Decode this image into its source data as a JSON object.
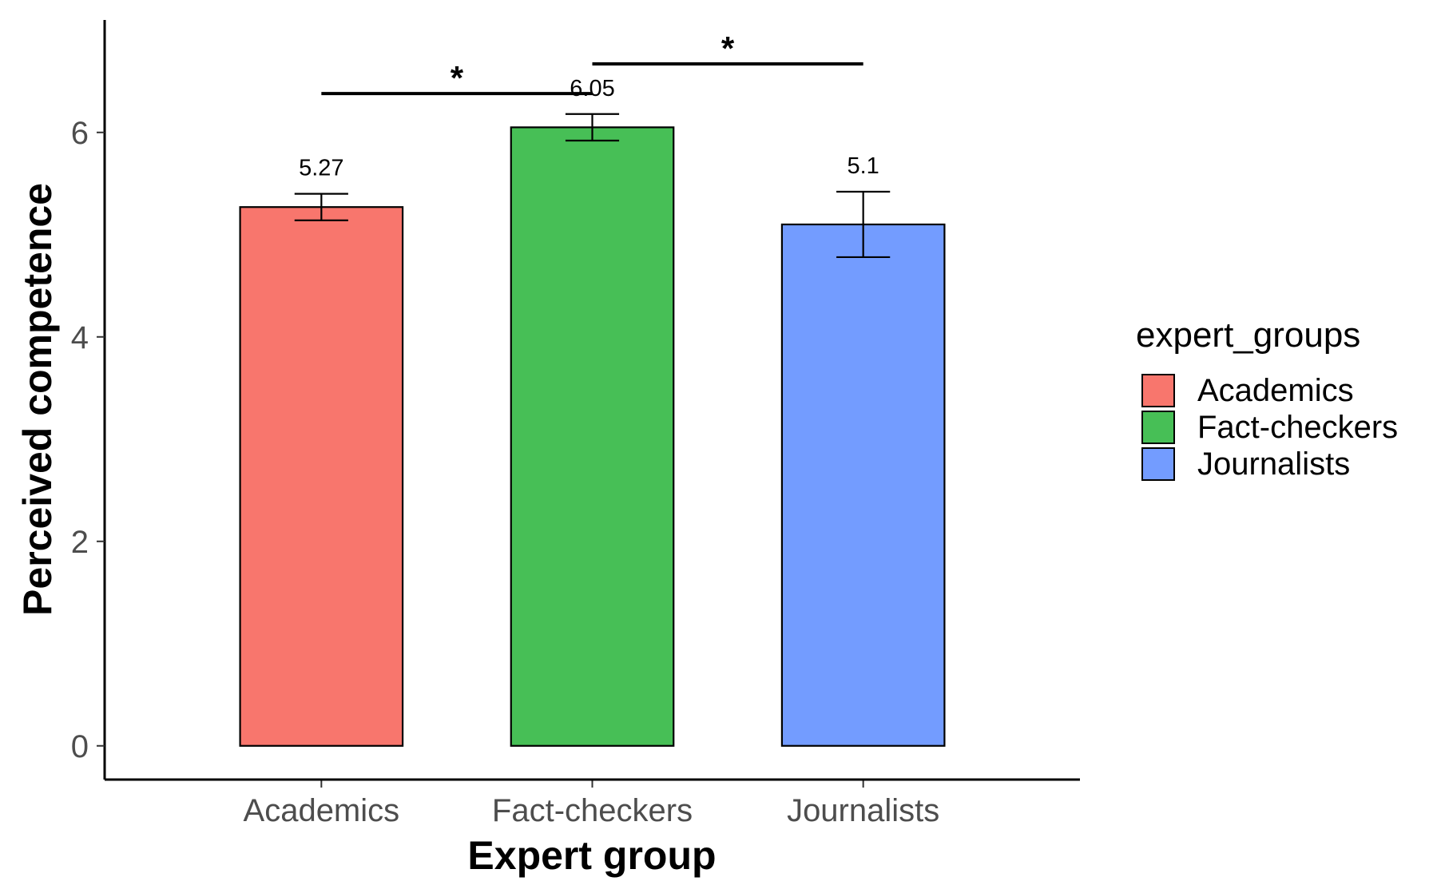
{
  "chart_data": {
    "type": "bar",
    "categories": [
      "Academics",
      "Fact-checkers",
      "Journalists"
    ],
    "values": [
      5.27,
      6.05,
      5.1
    ],
    "value_labels": [
      "5.27",
      "6.05",
      "5.1"
    ],
    "errors": [
      {
        "low": 5.14,
        "high": 5.4
      },
      {
        "low": 5.92,
        "high": 6.18
      },
      {
        "low": 4.78,
        "high": 5.42
      }
    ],
    "colors": [
      "#F8766D",
      "#47BF56",
      "#739CFF"
    ],
    "xlabel": "Expert group",
    "ylabel": "Perceived competence",
    "yticks": [
      0,
      2,
      4,
      6
    ],
    "ytick_labels": [
      "0",
      "2",
      "4",
      "6"
    ],
    "ylim": [
      -0.33,
      7.1
    ],
    "grid": false,
    "legend": {
      "title": "expert_groups",
      "placement": "right",
      "entries": [
        "Academics",
        "Fact-checkers",
        "Journalists"
      ]
    },
    "significance": [
      {
        "from": "Academics",
        "to": "Fact-checkers",
        "y": 6.38,
        "label": "*"
      },
      {
        "from": "Fact-checkers",
        "to": "Journalists",
        "y": 6.67,
        "label": "*"
      }
    ]
  }
}
